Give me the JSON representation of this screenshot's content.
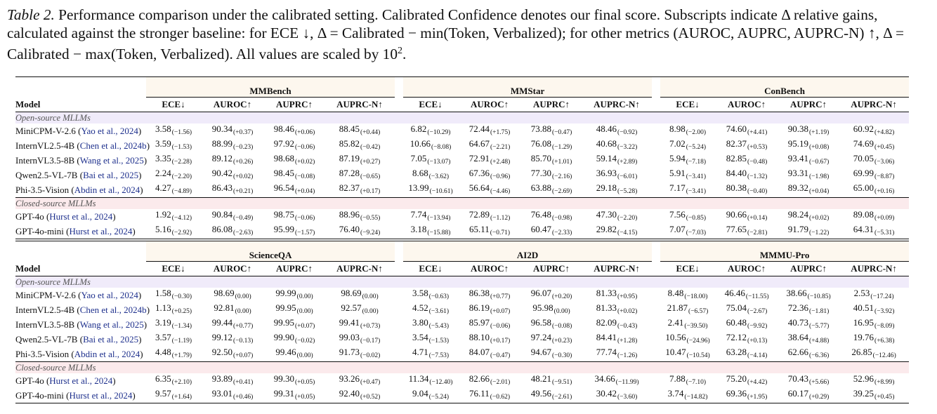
{
  "caption": {
    "label": "Table 2.",
    "text": " Performance comparison under the calibrated setting. Calibrated Confidence denotes our final score. Subscripts indicate Δ relative gains, calculated against the stronger baseline: for ECE ↓, Δ = Calibrated − min(Token, Verbalized); for other metrics (AUROC, AUPRC, AUPRC-N) ↑, Δ = Calibrated − max(Token, Verbalized). All values are scaled by 10",
    "exponent": "2",
    "end": "."
  },
  "model_header": "Model",
  "metrics": [
    "ECE↓",
    "AUROC↑",
    "AUPRC↑",
    "AUPRC-N↑"
  ],
  "sections": {
    "open": "Open-source MLLMs",
    "closed": "Closed-source MLLMs"
  },
  "tables": [
    {
      "benchmarks": [
        "MMBench",
        "MMStar",
        "ConBench"
      ],
      "open_rows": [
        {
          "name": "MiniCPM-V-2.6",
          "cite": "Yao et al., 2024",
          "cells": [
            [
              "3.58",
              "−1.56"
            ],
            [
              "90.34",
              "+0.37"
            ],
            [
              "98.46",
              "+0.06"
            ],
            [
              "88.45",
              "+0.44"
            ],
            [
              "6.82",
              "−10.29"
            ],
            [
              "72.44",
              "+1.75"
            ],
            [
              "73.88",
              "−0.47"
            ],
            [
              "48.46",
              "−0.92"
            ],
            [
              "8.98",
              "−2.00"
            ],
            [
              "74.60",
              "+4.41"
            ],
            [
              "90.38",
              "+1.19"
            ],
            [
              "60.92",
              "+4.82"
            ]
          ]
        },
        {
          "name": "InternVL2.5-4B",
          "cite": "Chen et al., 2024b",
          "cells": [
            [
              "3.59",
              "−1.53"
            ],
            [
              "88.99",
              "−0.23"
            ],
            [
              "97.92",
              "−0.06"
            ],
            [
              "85.82",
              "−0.42"
            ],
            [
              "10.66",
              "−8.08"
            ],
            [
              "64.67",
              "−2.21"
            ],
            [
              "76.08",
              "−1.29"
            ],
            [
              "40.68",
              "−3.22"
            ],
            [
              "7.02",
              "−5.24"
            ],
            [
              "82.37",
              "+0.53"
            ],
            [
              "95.19",
              "+0.08"
            ],
            [
              "74.69",
              "+0.45"
            ]
          ]
        },
        {
          "name": "InternVL3.5-8B",
          "cite": "Wang et al., 2025",
          "cells": [
            [
              "3.35",
              "−2.28"
            ],
            [
              "89.12",
              "+0.26"
            ],
            [
              "98.68",
              "+0.02"
            ],
            [
              "87.19",
              "+0.27"
            ],
            [
              "7.05",
              "−13.07"
            ],
            [
              "72.91",
              "+2.48"
            ],
            [
              "85.70",
              "+1.01"
            ],
            [
              "59.14",
              "+2.89"
            ],
            [
              "5.94",
              "−7.18"
            ],
            [
              "82.85",
              "−0.48"
            ],
            [
              "93.41",
              "−0.67"
            ],
            [
              "70.05",
              "−3.06"
            ]
          ]
        },
        {
          "name": "Qwen2.5-VL-7B",
          "cite": "Bai et al., 2025",
          "cells": [
            [
              "2.24",
              "−2.20"
            ],
            [
              "90.42",
              "+0.02"
            ],
            [
              "98.45",
              "−0.08"
            ],
            [
              "87.28",
              "−0.65"
            ],
            [
              "8.68",
              "−3.62"
            ],
            [
              "67.36",
              "−0.96"
            ],
            [
              "77.30",
              "−2.16"
            ],
            [
              "36.93",
              "−6.01"
            ],
            [
              "5.91",
              "−3.41"
            ],
            [
              "84.40",
              "−1.32"
            ],
            [
              "93.31",
              "−1.98"
            ],
            [
              "69.99",
              "−8.87"
            ]
          ]
        },
        {
          "name": "Phi-3.5-Vision",
          "cite": "Abdin et al., 2024",
          "cells": [
            [
              "4.27",
              "−4.89"
            ],
            [
              "86.43",
              "+0.21"
            ],
            [
              "96.54",
              "+0.04"
            ],
            [
              "82.37",
              "+0.17"
            ],
            [
              "13.99",
              "−10.61"
            ],
            [
              "56.64",
              "−4.46"
            ],
            [
              "63.88",
              "−2.69"
            ],
            [
              "29.18",
              "−5.28"
            ],
            [
              "7.17",
              "−3.41"
            ],
            [
              "80.38",
              "−0.40"
            ],
            [
              "89.32",
              "+0.04"
            ],
            [
              "65.00",
              "+0.16"
            ]
          ]
        }
      ],
      "closed_rows": [
        {
          "name": "GPT-4o",
          "cite": "Hurst et al., 2024",
          "cells": [
            [
              "1.92",
              "−4.12"
            ],
            [
              "90.84",
              "−0.49"
            ],
            [
              "98.75",
              "−0.06"
            ],
            [
              "88.96",
              "−0.55"
            ],
            [
              "7.74",
              "−13.94"
            ],
            [
              "72.89",
              "−1.12"
            ],
            [
              "76.48",
              "−0.98"
            ],
            [
              "47.30",
              "−2.20"
            ],
            [
              "7.56",
              "−0.85"
            ],
            [
              "90.66",
              "+0.14"
            ],
            [
              "98.24",
              "+0.02"
            ],
            [
              "89.08",
              "+0.09"
            ]
          ]
        },
        {
          "name": "GPT-4o-mini",
          "cite": "Hurst et al., 2024",
          "cells": [
            [
              "5.16",
              "−2.92"
            ],
            [
              "86.08",
              "−2.63"
            ],
            [
              "95.99",
              "−1.57"
            ],
            [
              "76.40",
              "−9.24"
            ],
            [
              "3.18",
              "−15.88"
            ],
            [
              "65.11",
              "−0.71"
            ],
            [
              "60.47",
              "−2.33"
            ],
            [
              "29.82",
              "−4.15"
            ],
            [
              "7.07",
              "−7.03"
            ],
            [
              "77.65",
              "−2.81"
            ],
            [
              "91.79",
              "−1.22"
            ],
            [
              "64.31",
              "−5.31"
            ]
          ]
        }
      ]
    },
    {
      "benchmarks": [
        "ScienceQA",
        "AI2D",
        "MMMU-Pro"
      ],
      "open_rows": [
        {
          "name": "MiniCPM-V-2.6",
          "cite": "Yao et al., 2024",
          "cells": [
            [
              "1.58",
              "−0.30"
            ],
            [
              "98.69",
              "0.00"
            ],
            [
              "99.99",
              "0.00"
            ],
            [
              "98.69",
              "0.00"
            ],
            [
              "3.58",
              "−0.63"
            ],
            [
              "86.38",
              "+0.77"
            ],
            [
              "96.07",
              "+0.20"
            ],
            [
              "81.33",
              "+0.95"
            ],
            [
              "8.48",
              "−18.00"
            ],
            [
              "46.46",
              "−11.55"
            ],
            [
              "38.66",
              "−10.85"
            ],
            [
              "2.53",
              "−17.24"
            ]
          ]
        },
        {
          "name": "InternVL2.5-4B",
          "cite": "Chen et al., 2024b",
          "cells": [
            [
              "1.13",
              "+0.25"
            ],
            [
              "92.81",
              "0.00"
            ],
            [
              "99.95",
              "0.00"
            ],
            [
              "92.57",
              "0.00"
            ],
            [
              "4.52",
              "−3.61"
            ],
            [
              "86.19",
              "+0.07"
            ],
            [
              "95.98",
              "0.00"
            ],
            [
              "81.33",
              "+0.02"
            ],
            [
              "21.87",
              "−6.57"
            ],
            [
              "75.04",
              "−2.67"
            ],
            [
              "72.36",
              "−1.81"
            ],
            [
              "40.51",
              "−3.92"
            ]
          ]
        },
        {
          "name": "InternVL3.5-8B",
          "cite": "Wang et al., 2025",
          "cells": [
            [
              "3.19",
              "−1.34"
            ],
            [
              "99.44",
              "+0.77"
            ],
            [
              "99.95",
              "+0.07"
            ],
            [
              "99.41",
              "+0.73"
            ],
            [
              "3.80",
              "−5.43"
            ],
            [
              "85.97",
              "−0.06"
            ],
            [
              "96.58",
              "−0.08"
            ],
            [
              "82.09",
              "−0.43"
            ],
            [
              "2.41",
              "−39.50"
            ],
            [
              "60.48",
              "−9.92"
            ],
            [
              "40.73",
              "−5.77"
            ],
            [
              "16.95",
              "−8.09"
            ]
          ]
        },
        {
          "name": "Qwen2.5-VL-7B",
          "cite": "Bai et al., 2025",
          "cells": [
            [
              "3.57",
              "−1.19"
            ],
            [
              "99.12",
              "−0.13"
            ],
            [
              "99.90",
              "−0.02"
            ],
            [
              "99.03",
              "−0.17"
            ],
            [
              "3.54",
              "−1.53"
            ],
            [
              "88.10",
              "+0.17"
            ],
            [
              "97.24",
              "+0.23"
            ],
            [
              "84.41",
              "+1.28"
            ],
            [
              "10.56",
              "−24.96"
            ],
            [
              "72.12",
              "+0.13"
            ],
            [
              "38.64",
              "+4.88"
            ],
            [
              "19.76",
              "+6.38"
            ]
          ]
        },
        {
          "name": "Phi-3.5-Vision",
          "cite": "Abdin et al., 2024",
          "cells": [
            [
              "4.48",
              "+1.79"
            ],
            [
              "92.50",
              "+0.07"
            ],
            [
              "99.46",
              "0.00"
            ],
            [
              "91.73",
              "−0.02"
            ],
            [
              "4.71",
              "−7.53"
            ],
            [
              "84.07",
              "−0.47"
            ],
            [
              "94.67",
              "−0.30"
            ],
            [
              "77.74",
              "−1.26"
            ],
            [
              "10.47",
              "−10.54"
            ],
            [
              "63.28",
              "−4.14"
            ],
            [
              "62.66",
              "−6.36"
            ],
            [
              "26.85",
              "−12.46"
            ]
          ]
        }
      ],
      "closed_rows": [
        {
          "name": "GPT-4o",
          "cite": "Hurst et al., 2024",
          "cells": [
            [
              "6.35",
              "+2.10"
            ],
            [
              "93.89",
              "+0.41"
            ],
            [
              "99.30",
              "+0.05"
            ],
            [
              "93.26",
              "+0.47"
            ],
            [
              "11.34",
              "−12.40"
            ],
            [
              "82.66",
              "−2.01"
            ],
            [
              "48.21",
              "−9.51"
            ],
            [
              "34.66",
              "−11.99"
            ],
            [
              "7.88",
              "−7.10"
            ],
            [
              "75.20",
              "+4.42"
            ],
            [
              "70.43",
              "+5.66"
            ],
            [
              "52.96",
              "+8.99"
            ]
          ]
        },
        {
          "name": "GPT-4o-mini",
          "cite": "Hurst et al., 2024",
          "cells": [
            [
              "9.57",
              "+1.64"
            ],
            [
              "93.01",
              "+0.46"
            ],
            [
              "99.31",
              "+0.05"
            ],
            [
              "92.40",
              "+0.52"
            ],
            [
              "9.04",
              "−5.24"
            ],
            [
              "76.11",
              "−0.62"
            ],
            [
              "49.56",
              "−2.61"
            ],
            [
              "30.42",
              "−3.60"
            ],
            [
              "3.74",
              "−14.82"
            ],
            [
              "69.36",
              "+1.95"
            ],
            [
              "60.17",
              "+0.29"
            ],
            [
              "39.25",
              "+0.45"
            ]
          ]
        }
      ]
    }
  ]
}
